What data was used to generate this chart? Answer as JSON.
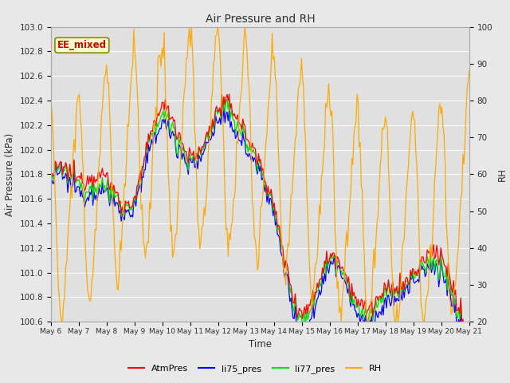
{
  "title": "Air Pressure and RH",
  "xlabel": "Time",
  "ylabel_left": "Air Pressure (kPa)",
  "ylabel_right": "RH",
  "annotation": "EE_mixed",
  "ylim_left": [
    100.6,
    103.0
  ],
  "ylim_right": [
    20,
    100
  ],
  "yticks_left": [
    100.6,
    100.8,
    101.0,
    101.2,
    101.4,
    101.6,
    101.8,
    102.0,
    102.2,
    102.4,
    102.6,
    102.8,
    103.0
  ],
  "yticks_right": [
    20,
    30,
    40,
    50,
    60,
    70,
    80,
    90,
    100
  ],
  "x_labels": [
    "May 6",
    "May 7",
    "May 8",
    "May 9",
    "May 10",
    "May 11",
    "May 12",
    "May 13",
    "May 14",
    "May 15",
    "May 16",
    "May 17",
    "May 18",
    "May 19",
    "May 20",
    "May 21"
  ],
  "colors": {
    "AtmPres": "#ff0000",
    "li75_pres": "#0000ff",
    "li77_pres": "#00dd00",
    "RH": "#ffaa00"
  },
  "fig_bg_color": "#e8e8e8",
  "plot_bg_color": "#e0e0e0",
  "annotation_bg": "#ffffcc",
  "annotation_border": "#888800",
  "annotation_text_color": "#cc0000",
  "title_color": "#303030",
  "axis_label_color": "#303030",
  "tick_color": "#303030",
  "grid_color": "#ffffff",
  "n_points": 400
}
